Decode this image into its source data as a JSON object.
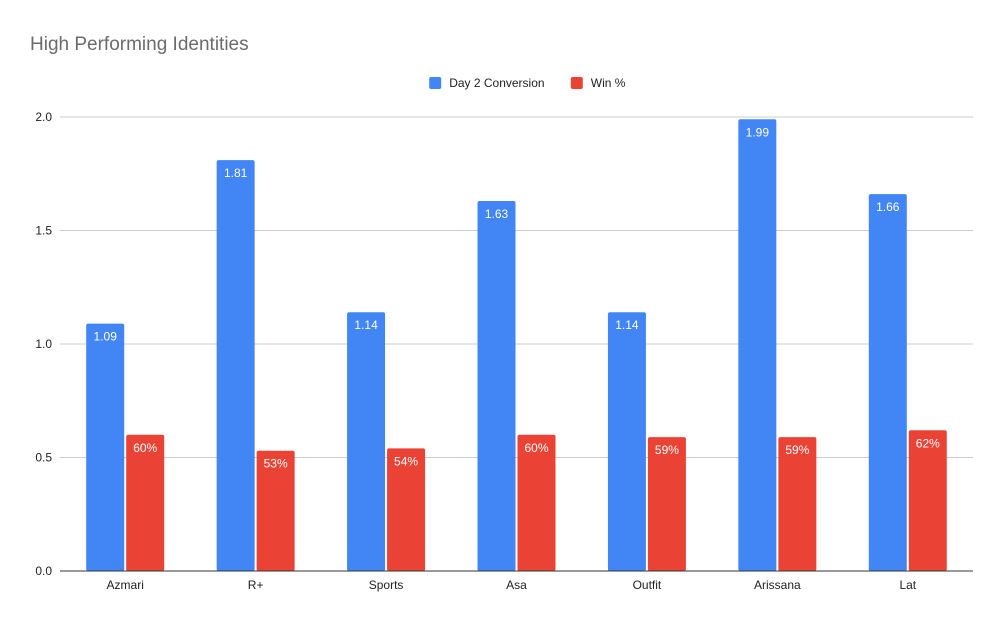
{
  "chart_data": {
    "type": "bar",
    "title": "High Performing Identities",
    "xlabel": "",
    "ylabel": "",
    "categories": [
      "Azmari",
      "R+",
      "Sports",
      "Asa",
      "Outfit",
      "Arissana",
      "Lat"
    ],
    "series": [
      {
        "name": "Day 2 Conversion",
        "color": "#4285f4",
        "values": [
          1.09,
          1.81,
          1.14,
          1.63,
          1.14,
          1.99,
          1.66
        ],
        "labels": [
          "1.09",
          "1.81",
          "1.14",
          "1.63",
          "1.14",
          "1.99",
          "1.66"
        ]
      },
      {
        "name": "Win %",
        "color": "#ea4335",
        "values": [
          0.6,
          0.53,
          0.54,
          0.6,
          0.59,
          0.59,
          0.62
        ],
        "labels": [
          "60%",
          "53%",
          "54%",
          "60%",
          "59%",
          "59%",
          "62%"
        ]
      }
    ],
    "ylim": [
      0,
      2.0
    ],
    "yticks": [
      "0.0",
      "0.5",
      "1.0",
      "1.5",
      "2.0"
    ],
    "grid": true,
    "legend": "top-center"
  }
}
